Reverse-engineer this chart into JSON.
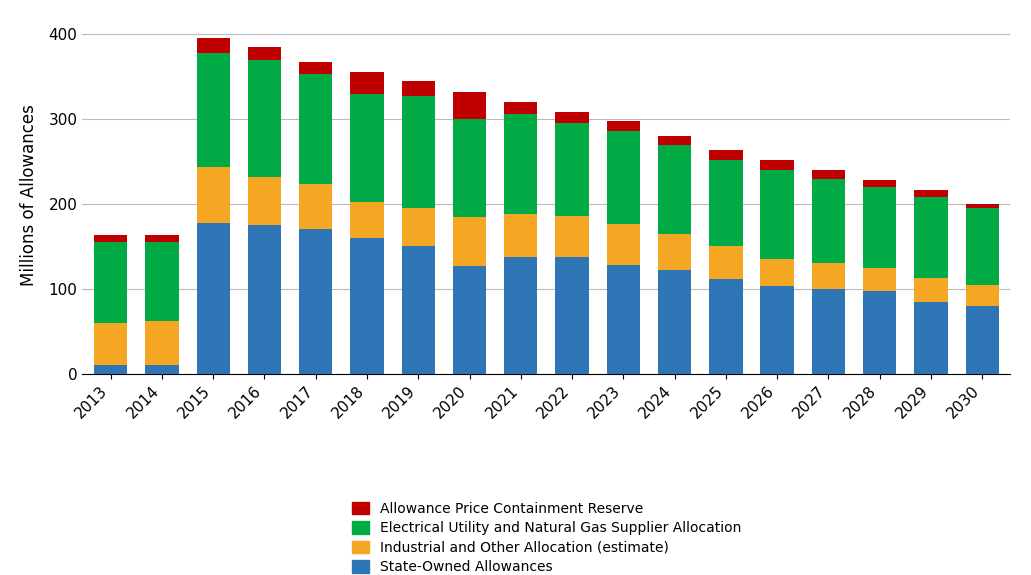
{
  "years": [
    2013,
    2014,
    2015,
    2016,
    2017,
    2018,
    2019,
    2020,
    2021,
    2022,
    2023,
    2024,
    2025,
    2026,
    2027,
    2028,
    2029,
    2030
  ],
  "state_owned": [
    10,
    10,
    178,
    175,
    170,
    160,
    150,
    127,
    138,
    138,
    128,
    122,
    112,
    103,
    100,
    97,
    85,
    80
  ],
  "industrial": [
    50,
    52,
    65,
    57,
    53,
    42,
    45,
    58,
    50,
    48,
    48,
    43,
    38,
    32,
    30,
    28,
    28,
    25
  ],
  "electrical": [
    95,
    93,
    135,
    138,
    130,
    128,
    132,
    115,
    118,
    110,
    110,
    105,
    102,
    105,
    100,
    95,
    95,
    90
  ],
  "price_reserve": [
    8,
    8,
    17,
    15,
    14,
    26,
    18,
    32,
    14,
    12,
    12,
    10,
    12,
    12,
    10,
    8,
    8,
    5
  ],
  "colors": {
    "state_owned": "#2E75B6",
    "industrial": "#F5A623",
    "electrical": "#00AA44",
    "price_reserve": "#C00000"
  },
  "ylabel": "Millions of Allowances",
  "ylim": [
    0,
    420
  ],
  "yticks": [
    0,
    100,
    200,
    300,
    400
  ],
  "legend_labels": [
    "Allowance Price Containment Reserve",
    "Electrical Utility and Natural Gas Supplier Allocation",
    "Industrial and Other Allocation (estimate)",
    "State-Owned Allowances"
  ],
  "background_color": "#FFFFFF",
  "grid_color": "#BBBBBB"
}
